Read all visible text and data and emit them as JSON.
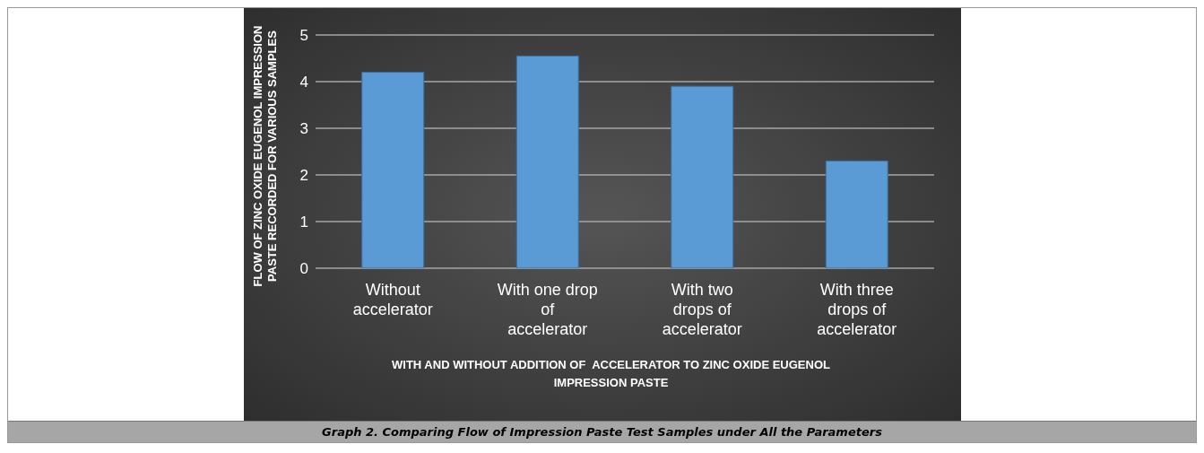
{
  "chart_data": {
    "type": "bar",
    "xlabel": "WITH AND WITHOUT ADDITION OF  ACCELERATOR TO ZINC OXIDE EUGENOL IMPRESSION PASTE",
    "ylabel": "FLOW OF ZINC OXIDE EUGENOL IMPRESSION PASTE RECORDED FOR VARIOUS SAMPLES",
    "categories": [
      "Without accelerator",
      "With one drop of accelerator",
      "With two drops of accelerator",
      "With three drops of accelerator"
    ],
    "values": [
      4.2,
      4.55,
      3.9,
      2.3
    ],
    "color": "#5b9bd5",
    "ylim": [
      0,
      5
    ],
    "yticks": [
      0,
      1,
      2,
      3,
      4,
      5
    ],
    "grid": "y",
    "annotations": [
      "Graph 2. Comparing Flow of Impression Paste Test Samples under All the Parameters"
    ]
  }
}
